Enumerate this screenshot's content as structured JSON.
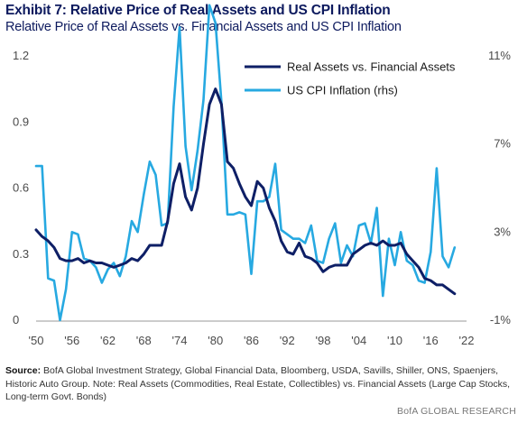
{
  "title": "Exhibit 7: Relative Price of Real Assets and US CPI Inflation",
  "subtitle": "Relative Price of Real Assets vs. Financial Assets and US CPI Inflation",
  "source_label": "Source:",
  "source_text": "BofA Global Investment Strategy, Global Financial Data, Bloomberg, USDA, Savills, Shiller, ONS, Spaenjers, Historic Auto Group. Note: Real Assets (Commodities, Real Estate, Collectibles) vs. Financial Assets (Large Cap Stocks, Long-term Govt. Bonds)",
  "footer": "BofA GLOBAL RESEARCH",
  "colors": {
    "real_assets": "#0e1f66",
    "cpi": "#27a9e1"
  },
  "chart_data": {
    "type": "line",
    "legend_position": "top-right",
    "grid": false,
    "x_tick_labels": [
      "'50",
      "'56",
      "'62",
      "'68",
      "'74",
      "'80",
      "'86",
      "'92",
      "'98",
      "'04",
      "'10",
      "'16",
      "'22"
    ],
    "x_tick_years": [
      1950,
      1956,
      1962,
      1968,
      1974,
      1980,
      1986,
      1992,
      1998,
      2004,
      2010,
      2016,
      2022
    ],
    "xlim": [
      1950,
      2022
    ],
    "y_left": {
      "ticks": [
        "0",
        "0.3",
        "0.6",
        "0.9",
        "1.2"
      ],
      "values": [
        0,
        0.3,
        0.6,
        0.9,
        1.2
      ],
      "lim": [
        0,
        1.2
      ]
    },
    "y_right": {
      "ticks": [
        "-1%",
        "3%",
        "7%",
        "11%"
      ],
      "values": [
        -1,
        3,
        7,
        11
      ],
      "lim": [
        -1,
        11
      ]
    },
    "series": [
      {
        "name": "Real Assets vs. Financial Assets",
        "axis": "left",
        "color": "#0e1f66",
        "x": [
          1950,
          1951,
          1952,
          1953,
          1954,
          1955,
          1956,
          1957,
          1958,
          1959,
          1960,
          1961,
          1962,
          1963,
          1964,
          1965,
          1966,
          1967,
          1968,
          1969,
          1970,
          1971,
          1972,
          1973,
          1974,
          1975,
          1976,
          1977,
          1978,
          1979,
          1980,
          1981,
          1982,
          1983,
          1984,
          1985,
          1986,
          1987,
          1988,
          1989,
          1990,
          1991,
          1992,
          1993,
          1994,
          1995,
          1996,
          1997,
          1998,
          1999,
          2000,
          2001,
          2002,
          2003,
          2004,
          2005,
          2006,
          2007,
          2008,
          2009,
          2010,
          2011,
          2012,
          2013,
          2014,
          2015,
          2016,
          2017,
          2018,
          2019,
          2020
        ],
        "y": [
          0.41,
          0.38,
          0.36,
          0.33,
          0.28,
          0.27,
          0.27,
          0.28,
          0.26,
          0.27,
          0.26,
          0.26,
          0.25,
          0.24,
          0.25,
          0.26,
          0.28,
          0.27,
          0.3,
          0.34,
          0.34,
          0.34,
          0.45,
          0.62,
          0.71,
          0.56,
          0.5,
          0.6,
          0.8,
          0.98,
          1.05,
          0.98,
          0.72,
          0.69,
          0.62,
          0.56,
          0.52,
          0.63,
          0.6,
          0.51,
          0.45,
          0.36,
          0.31,
          0.3,
          0.35,
          0.29,
          0.28,
          0.26,
          0.22,
          0.24,
          0.25,
          0.25,
          0.25,
          0.3,
          0.32,
          0.34,
          0.35,
          0.34,
          0.36,
          0.34,
          0.34,
          0.35,
          0.3,
          0.27,
          0.24,
          0.19,
          0.18,
          0.16,
          0.16,
          0.14,
          0.12
        ]
      },
      {
        "name": "US CPI Inflation (rhs)",
        "axis": "right",
        "color": "#27a9e1",
        "x": [
          1950,
          1951,
          1952,
          1953,
          1954,
          1955,
          1956,
          1957,
          1958,
          1959,
          1960,
          1961,
          1962,
          1963,
          1964,
          1965,
          1966,
          1967,
          1968,
          1969,
          1970,
          1971,
          1972,
          1973,
          1974,
          1975,
          1976,
          1977,
          1978,
          1979,
          1980,
          1981,
          1982,
          1983,
          1984,
          1985,
          1986,
          1987,
          1988,
          1989,
          1990,
          1991,
          1992,
          1993,
          1994,
          1995,
          1996,
          1997,
          1998,
          1999,
          2000,
          2001,
          2002,
          2003,
          2004,
          2005,
          2006,
          2007,
          2008,
          2009,
          2010,
          2011,
          2012,
          2013,
          2014,
          2015,
          2016,
          2017,
          2018,
          2019,
          2020
        ],
        "y": [
          6.0,
          6.0,
          0.9,
          0.8,
          -1.0,
          0.4,
          3.0,
          2.9,
          1.8,
          1.7,
          1.4,
          0.7,
          1.3,
          1.6,
          1.0,
          1.9,
          3.5,
          3.0,
          4.7,
          6.2,
          5.6,
          3.3,
          3.4,
          8.7,
          12.3,
          6.9,
          4.9,
          6.7,
          9.0,
          13.3,
          12.5,
          8.9,
          3.8,
          3.8,
          3.9,
          3.8,
          1.1,
          4.4,
          4.4,
          4.6,
          6.1,
          3.1,
          2.9,
          2.7,
          2.7,
          2.5,
          3.3,
          1.7,
          1.6,
          2.7,
          3.4,
          1.6,
          2.4,
          1.9,
          3.3,
          3.4,
          2.5,
          4.1,
          0.1,
          2.7,
          1.5,
          3.0,
          1.7,
          1.5,
          0.8,
          0.7,
          2.1,
          5.9,
          1.9,
          1.4,
          2.3
        ]
      }
    ]
  }
}
